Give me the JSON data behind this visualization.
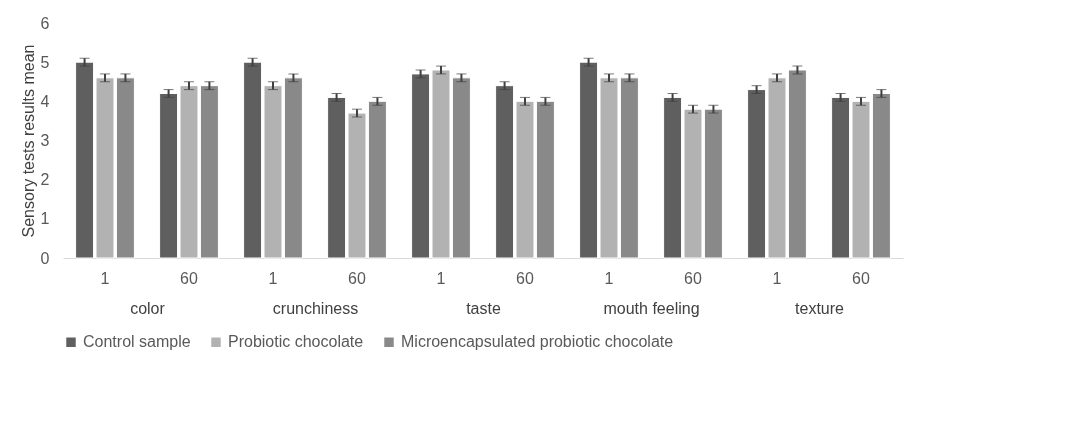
{
  "chart_data": [
    {
      "type": "bar",
      "xlabel": "color",
      "ylabel": "Sensory tests results mean",
      "categories": [
        "1",
        "60"
      ],
      "ylim": [
        0,
        6
      ],
      "yticks": [
        0,
        1,
        2,
        3,
        4,
        5,
        6
      ],
      "legend": "bottom",
      "series": [
        {
          "name": "Control sample",
          "color": "#5f5f5f",
          "values": [
            5.0,
            4.2
          ],
          "errors": [
            0.1,
            0.1
          ]
        },
        {
          "name": "Probiotic chocolate",
          "color": "#b2b2b2",
          "values": [
            4.6,
            4.4
          ],
          "errors": [
            0.1,
            0.1
          ]
        },
        {
          "name": "Microencapsulated probiotic chocolate",
          "color": "#898989",
          "values": [
            4.6,
            4.4
          ],
          "errors": [
            0.1,
            0.1
          ]
        }
      ]
    },
    {
      "type": "bar",
      "xlabel": "crunchiness",
      "categories": [
        "1",
        "60"
      ],
      "ylim": [
        0,
        6
      ],
      "tick_labels": "x",
      "series": [
        {
          "name": "Control sample",
          "color": "#5f5f5f",
          "values": [
            5.0,
            4.1
          ],
          "errors": [
            0.1,
            0.1
          ]
        },
        {
          "name": "Probiotic chocolate",
          "color": "#b2b2b2",
          "values": [
            4.4,
            3.7
          ],
          "errors": [
            0.1,
            0.1
          ]
        },
        {
          "name": "Microencapsulated probiotic chocolate",
          "color": "#898989",
          "values": [
            4.6,
            4.0
          ],
          "errors": [
            0.1,
            0.1
          ]
        }
      ]
    },
    {
      "type": "bar",
      "xlabel": "taste",
      "categories": [
        "1",
        "60"
      ],
      "ylim": [
        0,
        6
      ],
      "tick_labels": "x",
      "series": [
        {
          "name": "Control sample",
          "color": "#5f5f5f",
          "values": [
            4.7,
            4.4
          ],
          "errors": [
            0.1,
            0.1
          ]
        },
        {
          "name": "Probiotic chocolate",
          "color": "#b2b2b2",
          "values": [
            4.8,
            4.0
          ],
          "errors": [
            0.1,
            0.1
          ]
        },
        {
          "name": "Microencapsulated probiotic chocolate",
          "color": "#898989",
          "values": [
            4.6,
            4.0
          ],
          "errors": [
            0.1,
            0.1
          ]
        }
      ]
    },
    {
      "type": "bar",
      "xlabel": "mouth feeling",
      "categories": [
        "1",
        "60"
      ],
      "ylim": [
        0,
        6
      ],
      "tick_labels": "x",
      "series": [
        {
          "name": "Control sample",
          "color": "#5f5f5f",
          "values": [
            5.0,
            4.1
          ],
          "errors": [
            0.1,
            0.1
          ]
        },
        {
          "name": "Probiotic chocolate",
          "color": "#b2b2b2",
          "values": [
            4.6,
            3.8
          ],
          "errors": [
            0.1,
            0.1
          ]
        },
        {
          "name": "Microencapsulated probiotic chocolate",
          "color": "#898989",
          "values": [
            4.6,
            3.8
          ],
          "errors": [
            0.1,
            0.1
          ]
        }
      ]
    },
    {
      "type": "bar",
      "xlabel": "texture",
      "categories": [
        "1",
        "60"
      ],
      "ylim": [
        0,
        6
      ],
      "tick_labels": "x",
      "series": [
        {
          "name": "Control sample",
          "color": "#5f5f5f",
          "values": [
            4.3,
            4.1
          ],
          "errors": [
            0.1,
            0.1
          ]
        },
        {
          "name": "Probiotic chocolate",
          "color": "#b2b2b2",
          "values": [
            4.6,
            4.0
          ],
          "errors": [
            0.1,
            0.1
          ]
        },
        {
          "name": "Microencapsulated probiotic chocolate",
          "color": "#898989",
          "values": [
            4.8,
            4.2
          ],
          "errors": [
            0.1,
            0.1
          ]
        }
      ]
    }
  ]
}
